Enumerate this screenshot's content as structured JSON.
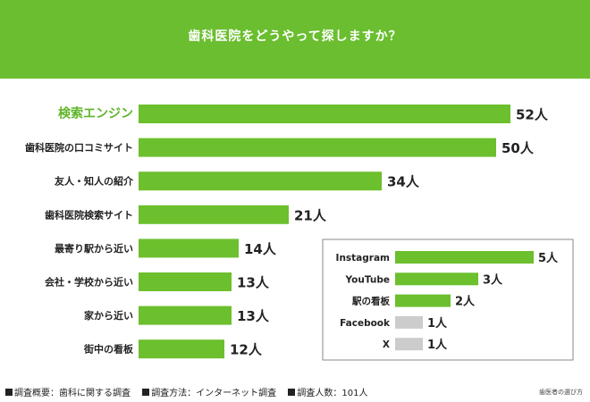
{
  "title": "歯科医院をどうやって探しますか？",
  "colors": {
    "accent": "#6abe2f",
    "bar": "#6cbf2d",
    "gray_bar": "#cccccc",
    "highlight_text": "#5fb52a"
  },
  "chart_data": [
    {
      "type": "bar",
      "orientation": "horizontal",
      "title": "歯科医院をどうやって探しますか？",
      "categories": [
        "検索エンジン",
        "歯科医院の口コミサイト",
        "友人・知人の紹介",
        "歯科医院検索サイト",
        "最寄り駅から近い",
        "会社・学校から近い",
        "家から近い",
        "街中の看板"
      ],
      "values": [
        52,
        50,
        34,
        21,
        14,
        13,
        13,
        12
      ],
      "value_labels": [
        "52人",
        "50人",
        "34人",
        "21人",
        "14人",
        "13人",
        "13人",
        "12人"
      ],
      "highlight_index": 0,
      "xlim": [
        0,
        52
      ]
    },
    {
      "type": "bar",
      "orientation": "horizontal",
      "categories": [
        "Instagram",
        "YouTube",
        "駅の看板",
        "Facebook",
        "X"
      ],
      "values": [
        5,
        3,
        2,
        1,
        1
      ],
      "value_labels": [
        "5人",
        "3人",
        "2人",
        "1人",
        "1人"
      ],
      "gray_indices": [
        3,
        4
      ],
      "xlim": [
        0,
        5
      ]
    }
  ],
  "footer": {
    "items": [
      "調査概要：歯科に関する調査",
      "調査方法：インターネット調査",
      "調査人数：101人"
    ],
    "credit": "歯医者の選び方"
  }
}
